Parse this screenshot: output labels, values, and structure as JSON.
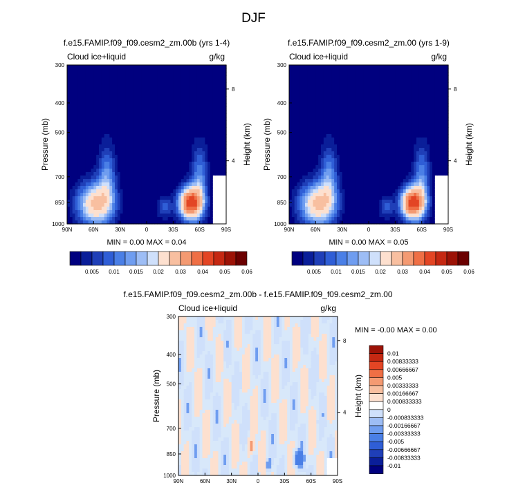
{
  "figure": {
    "title": "DJF"
  },
  "chart_data": [
    {
      "type": "heatmap",
      "title": "f.e15.FAMIP.f09_f09.cesm2_zm.00b (yrs 1-4)",
      "left_label": "Cloud ice+liquid",
      "right_label": "g/kg",
      "ylabel": "Pressure (mb)",
      "ylabel_right": "Height (km)",
      "x_ticks": [
        "90N",
        "60N",
        "30N",
        "0",
        "30S",
        "60S",
        "90S"
      ],
      "y_ticks": [
        "300",
        "400",
        "500",
        "700",
        "850",
        "1000"
      ],
      "y_ticks_right": [
        "8",
        "4"
      ],
      "stats_text": "MIN =   0.00   MAX =   0.04",
      "ylim": [
        1000,
        300
      ],
      "xlim": [
        90,
        -90
      ],
      "peaks": [
        {
          "lat": 60,
          "p": 850,
          "value": 0.025
        },
        {
          "lat": -50,
          "p": 850,
          "value": 0.04
        }
      ],
      "colorbar_labels": [
        "0.005",
        "0.01",
        "0.015",
        "0.02",
        "0.03",
        "0.04",
        "0.05",
        "0.06"
      ]
    },
    {
      "type": "heatmap",
      "title": "f.e15.FAMIP.f09_f09.cesm2_zm.00 (yrs 1-9)",
      "left_label": "Cloud ice+liquid",
      "right_label": "g/kg",
      "ylabel": "Pressure (mb)",
      "ylabel_right": "Height (km)",
      "x_ticks": [
        "90N",
        "60N",
        "30N",
        "0",
        "30S",
        "60S",
        "90S"
      ],
      "y_ticks": [
        "300",
        "400",
        "500",
        "700",
        "850",
        "1000"
      ],
      "y_ticks_right": [
        "8",
        "4"
      ],
      "stats_text": "MIN =   0.00   MAX =   0.05",
      "ylim": [
        1000,
        300
      ],
      "xlim": [
        90,
        -90
      ],
      "peaks": [
        {
          "lat": 60,
          "p": 850,
          "value": 0.025
        },
        {
          "lat": -50,
          "p": 850,
          "value": 0.04
        }
      ],
      "colorbar_labels": [
        "0.005",
        "0.01",
        "0.015",
        "0.02",
        "0.03",
        "0.04",
        "0.05",
        "0.06"
      ]
    },
    {
      "type": "heatmap",
      "title": "f.e15.FAMIP.f09_f09.cesm2_zm.00b - f.e15.FAMIP.f09_f09.cesm2_zm.00",
      "left_label": "Cloud ice+liquid",
      "right_label": "g/kg",
      "ylabel": "Pressure (mb)",
      "ylabel_right": "Height (km)",
      "x_ticks": [
        "90N",
        "60N",
        "30N",
        "0",
        "30S",
        "60S",
        "90S"
      ],
      "y_ticks": [
        "300",
        "400",
        "500",
        "700",
        "850",
        "1000"
      ],
      "y_ticks_right": [
        "8",
        "4"
      ],
      "stats_text": "MIN =  -0.00   MAX =   0.00",
      "ylim": [
        1000,
        300
      ],
      "xlim": [
        90,
        -90
      ],
      "colorbar_labels": [
        "0.01",
        "0.00833333",
        "0.00666667",
        "0.005",
        "0.00333333",
        "0.00166667",
        "0.000833333",
        "0",
        "-0.000833333",
        "-0.00166667",
        "-0.00333333",
        "-0.005",
        "-0.00666667",
        "-0.00833333",
        "-0.01"
      ]
    }
  ],
  "colors": {
    "seq": [
      "#00007f",
      "#0a1e99",
      "#1f3fb8",
      "#2f5ed6",
      "#4a7fe6",
      "#6f9df0",
      "#9dbdf5",
      "#cfe0fb",
      "#fde0cf",
      "#f8bfa0",
      "#f49a72",
      "#ef6f45",
      "#e34524",
      "#c52812",
      "#9c1206",
      "#6b0000"
    ],
    "diff": [
      "#9c1206",
      "#c52812",
      "#e34524",
      "#ef6f45",
      "#f49a72",
      "#f8bfa0",
      "#fde0cf",
      "#ffffff",
      "#cfe0fb",
      "#9dbdf5",
      "#6f9df0",
      "#4a7fe6",
      "#2f5ed6",
      "#1f3fb8",
      "#0a1e99",
      "#00007f"
    ]
  }
}
